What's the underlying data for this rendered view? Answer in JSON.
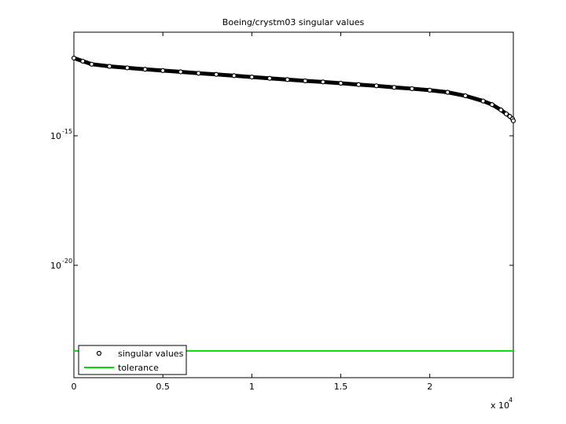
{
  "chart_data": {
    "type": "scatter",
    "title": "Boeing/crystm03 singular values",
    "ylog": true,
    "grid": false,
    "legend_position": "lower left",
    "xlim": [
      0,
      24696
    ],
    "ylim": [
      1e-11,
      4.6e-25
    ],
    "xticks": [
      {
        "value": 0,
        "label": "0"
      },
      {
        "value": 5000,
        "label": "0.5"
      },
      {
        "value": 10000,
        "label": "1"
      },
      {
        "value": 15000,
        "label": "1.5"
      },
      {
        "value": 20000,
        "label": "2"
      }
    ],
    "x_multiplier_label": "x 10",
    "x_multiplier_exponent": "4",
    "yticks": [
      {
        "value": 1e-15,
        "label": "10",
        "exponent": "-15"
      },
      {
        "value": 1e-20,
        "label": "10",
        "exponent": "-20"
      }
    ],
    "series": [
      {
        "name": "singular values",
        "color": "#000000",
        "marker": "circle",
        "x": [
          0,
          500,
          1000,
          2000,
          3000,
          4000,
          5000,
          6000,
          7000,
          8000,
          9000,
          10000,
          11000,
          12000,
          13000,
          14000,
          15000,
          16000,
          17000,
          18000,
          19000,
          20000,
          21000,
          22000,
          23000,
          23500,
          24000,
          24300,
          24500,
          24650,
          24696
        ],
        "values": [
          1e-12,
          7.6e-13,
          5.8e-13,
          4.8e-13,
          4.2e-13,
          3.7e-13,
          3.3e-13,
          2.95e-13,
          2.6e-13,
          2.35e-13,
          2.1e-13,
          1.86e-13,
          1.66e-13,
          1.48e-13,
          1.32e-13,
          1.2e-13,
          1.07e-13,
          9.5e-14,
          8.5e-14,
          7.4e-14,
          6.6e-14,
          5.75e-14,
          4.8e-14,
          3.5e-14,
          2.2e-14,
          1.6e-14,
          1e-14,
          7e-15,
          5.6e-15,
          4.5e-15,
          3.8e-15
        ]
      },
      {
        "name": "tolerance",
        "color": "#00dd00",
        "marker": "line",
        "x": [
          0,
          24696
        ],
        "values": [
          5e-24,
          5e-24
        ]
      }
    ]
  }
}
